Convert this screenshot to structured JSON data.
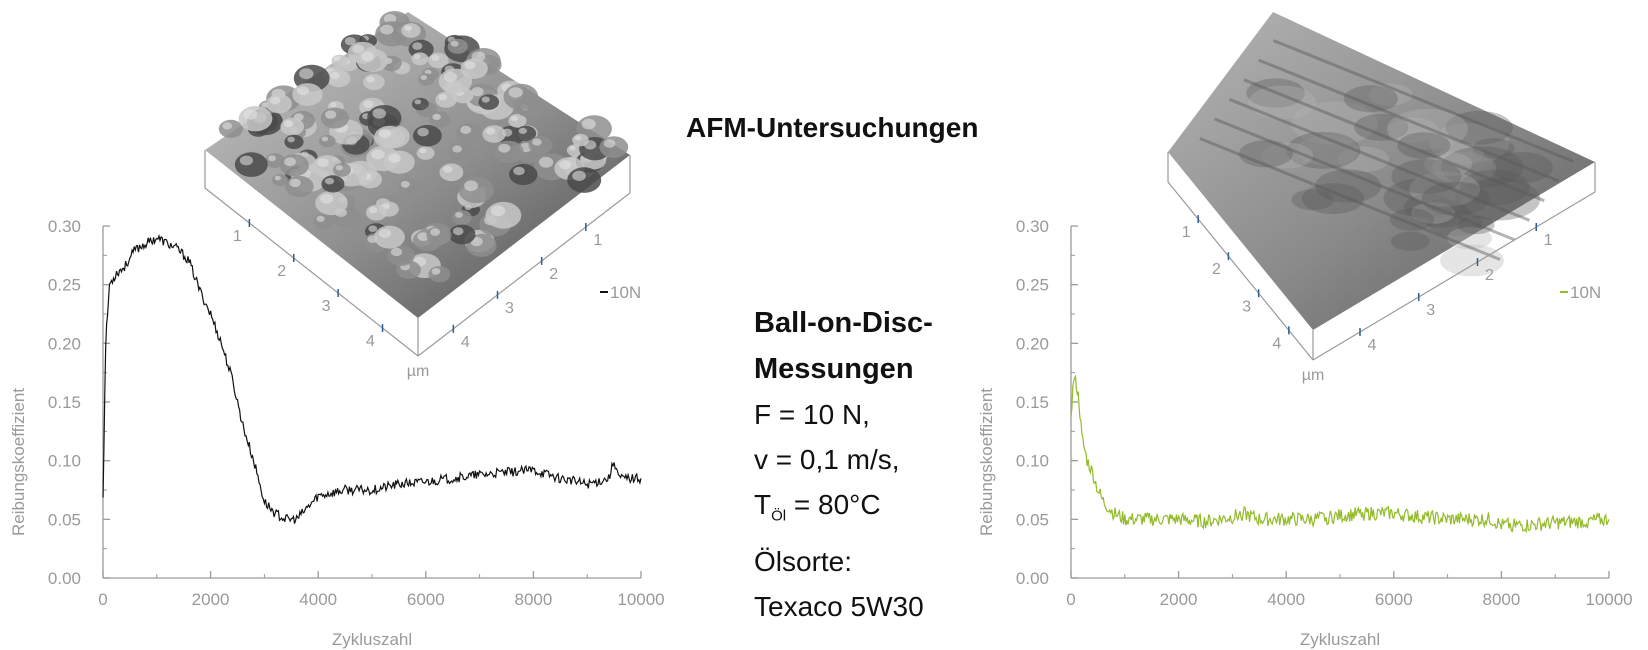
{
  "page": {
    "title": "AFM-Untersuchungen",
    "conditions": {
      "heading_line1": "Ball-on-Disc-",
      "heading_line2": "Messungen",
      "force": "F = 10 N,",
      "speed": "v = 0,1 m/s,",
      "temp_prefix": "T",
      "temp_sub": "Öl",
      "temp_value": " = 80°C",
      "oil_label": "Ölsorte:",
      "oil_name": "Texaco 5W30"
    }
  },
  "chart_data": [
    {
      "type": "line",
      "title": "",
      "xlabel": "Zykluszahl",
      "ylabel": "Reibungskoeffizient",
      "xlim": [
        0,
        10000
      ],
      "ylim": [
        0,
        0.3
      ],
      "xticks": [
        "0",
        "2000",
        "4000",
        "6000",
        "8000",
        "10000"
      ],
      "yticks": [
        "0.00",
        "0.05",
        "0.10",
        "0.15",
        "0.20",
        "0.25",
        "0.30"
      ],
      "grid": false,
      "legend_position": "right",
      "color": "#111111",
      "series": [
        {
          "name": "10N",
          "x": [
            0,
            50,
            120,
            250,
            400,
            600,
            800,
            1000,
            1200,
            1400,
            1600,
            1800,
            2000,
            2200,
            2400,
            2600,
            2800,
            3000,
            3200,
            3400,
            3600,
            3800,
            4000,
            4500,
            5000,
            5500,
            6000,
            6500,
            7000,
            7500,
            8000,
            8500,
            9000,
            9400,
            9500,
            9600,
            10000
          ],
          "y": [
            0.07,
            0.2,
            0.25,
            0.26,
            0.265,
            0.28,
            0.285,
            0.29,
            0.285,
            0.28,
            0.27,
            0.245,
            0.225,
            0.2,
            0.17,
            0.13,
            0.1,
            0.065,
            0.055,
            0.05,
            0.05,
            0.06,
            0.07,
            0.075,
            0.075,
            0.08,
            0.082,
            0.085,
            0.088,
            0.09,
            0.092,
            0.085,
            0.08,
            0.085,
            0.1,
            0.085,
            0.085
          ]
        }
      ]
    },
    {
      "type": "line",
      "title": "",
      "xlabel": "Zykluszahl",
      "ylabel": "Reibungskoeffizient",
      "xlim": [
        0,
        10000
      ],
      "ylim": [
        0,
        0.3
      ],
      "xticks": [
        "0",
        "2000",
        "4000",
        "6000",
        "8000",
        "10000"
      ],
      "yticks": [
        "0.00",
        "0.05",
        "0.10",
        "0.15",
        "0.20",
        "0.25",
        "0.30"
      ],
      "grid": false,
      "legend_position": "right",
      "color": "#93bb2a",
      "series": [
        {
          "name": "10N",
          "x": [
            0,
            50,
            100,
            150,
            200,
            300,
            400,
            500,
            600,
            800,
            1000,
            1500,
            2000,
            2500,
            3000,
            3200,
            3500,
            4000,
            4500,
            5000,
            5500,
            6000,
            6500,
            7000,
            7500,
            7800,
            8000,
            8500,
            9000,
            9500,
            10000
          ],
          "y": [
            0.14,
            0.17,
            0.165,
            0.15,
            0.12,
            0.1,
            0.09,
            0.075,
            0.065,
            0.055,
            0.05,
            0.05,
            0.05,
            0.048,
            0.052,
            0.055,
            0.05,
            0.05,
            0.05,
            0.053,
            0.055,
            0.055,
            0.052,
            0.05,
            0.05,
            0.05,
            0.045,
            0.045,
            0.047,
            0.048,
            0.05
          ]
        }
      ]
    }
  ],
  "afm_images": [
    {
      "axis_ticks_left": [
        "1",
        "2",
        "3",
        "4"
      ],
      "axis_ticks_right": [
        "1",
        "2",
        "3",
        "4"
      ],
      "unit_label": "µm",
      "surface": "granular",
      "colors": {
        "light": "#c8c8c8",
        "mid": "#8e8e8e",
        "dark": "#4a4a4a"
      }
    },
    {
      "axis_ticks_left": [
        "1",
        "2",
        "3",
        "4"
      ],
      "axis_ticks_right": [
        "1",
        "2",
        "3",
        "4"
      ],
      "unit_label": "µm",
      "surface": "smooth",
      "colors": {
        "light": "#b5b5b5",
        "mid": "#8a8a8a",
        "dark": "#5a5a5a"
      }
    }
  ],
  "colors": {
    "axis": "#9a9a9a",
    "label": "#9a9a9a",
    "tick_blue": "#2a5f98"
  }
}
